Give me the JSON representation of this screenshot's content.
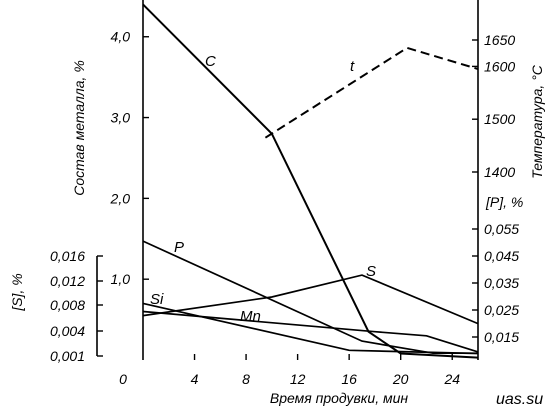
{
  "watermark": "uas.su",
  "chart_data": {
    "type": "line",
    "xlabel": "Время продувки, мин",
    "x_ticks": [
      "0",
      "4",
      "8",
      "12",
      "16",
      "20",
      "24"
    ],
    "xlim": [
      0,
      26
    ],
    "axes": {
      "composition": {
        "label": "Состав металла, %",
        "ticks": [
          "1,0",
          "2,0",
          "3,0",
          "4,0"
        ],
        "range": [
          0,
          4.3
        ]
      },
      "temperature": {
        "label": "Температура, °С",
        "ticks": [
          "1400",
          "1500",
          "1600",
          "1650"
        ],
        "range": [
          1275,
          1675
        ]
      },
      "phosphorus": {
        "label": "[P], %",
        "ticks": [
          "0,015",
          "0,025",
          "0,035",
          "0,045",
          "0,055"
        ],
        "range": [
          0.007,
          0.06
        ]
      },
      "sulfur": {
        "label": "[S], %",
        "ticks": [
          "0,001",
          "0,004",
          "0,008",
          "0,012",
          "0,016"
        ],
        "range": [
          0.001,
          0.016
        ]
      }
    },
    "series": [
      {
        "name": "C",
        "axis": "composition",
        "style": "solid",
        "x": [
          0,
          10,
          17.5,
          20,
          26
        ],
        "y": [
          4.4,
          2.8,
          0.35,
          0.08,
          0.03
        ]
      },
      {
        "name": "t",
        "axis": "temperature",
        "style": "dashed",
        "x": [
          9.5,
          20.5,
          26
        ],
        "y": [
          1465,
          1635,
          1595
        ]
      },
      {
        "name": "P",
        "axis": "phosphorus",
        "style": "solid",
        "x": [
          0,
          17,
          22.5,
          26
        ],
        "y": [
          0.0505,
          0.0135,
          0.009,
          0.009
        ]
      },
      {
        "name": "S",
        "axis": "composition",
        "style": "solid",
        "x": [
          0,
          10,
          17,
          26
        ],
        "y": [
          0.55,
          0.78,
          1.05,
          0.45
        ]
      },
      {
        "name": "Si",
        "axis": "composition",
        "style": "solid",
        "x": [
          0,
          16,
          26
        ],
        "y": [
          0.7,
          0.12,
          0.08
        ]
      },
      {
        "name": "Mn",
        "axis": "composition",
        "style": "solid",
        "x": [
          0,
          18,
          22,
          26
        ],
        "y": [
          0.6,
          0.35,
          0.3,
          0.1
        ]
      }
    ]
  }
}
